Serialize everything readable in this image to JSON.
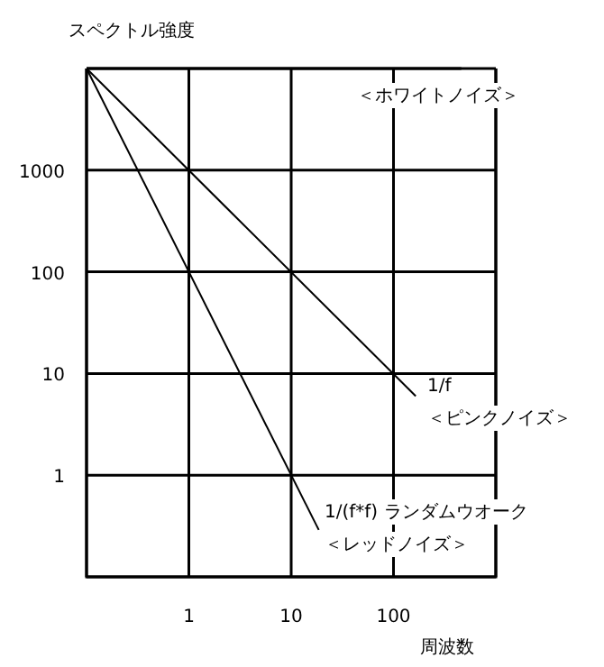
{
  "chart_data": {
    "type": "line",
    "ylabel": "スペクトル強度",
    "xlabel": "周波数",
    "log": "xy",
    "grid": true,
    "line_style": "solid",
    "xlim": [
      0.1,
      1000
    ],
    "ylim": [
      0.1,
      10000
    ],
    "xticks": [
      {
        "value": 0.1,
        "label": null
      },
      1,
      10,
      100,
      {
        "value": 1000,
        "label": null
      }
    ],
    "yticks": [
      {
        "value": 0.1,
        "label": null
      },
      1,
      10,
      100,
      1000,
      {
        "value": 10000,
        "label": null
      }
    ],
    "series": [
      {
        "color": "#000000",
        "x": [
          0.1,
          460
        ],
        "values": [
          10000,
          10000
        ]
      },
      {
        "color": "#000000",
        "x": [
          0.1,
          165
        ],
        "values": [
          10000,
          6
        ]
      },
      {
        "color": "#000000",
        "x": [
          0.1,
          18.6
        ],
        "values": [
          10000,
          0.29
        ]
      }
    ],
    "annotations": [
      "＜ホワイトノイズ＞",
      "1/f",
      "＜ピンクノイズ＞",
      "1/(f*f)  ランダムウオーク",
      "＜レッドノイズ＞"
    ]
  }
}
